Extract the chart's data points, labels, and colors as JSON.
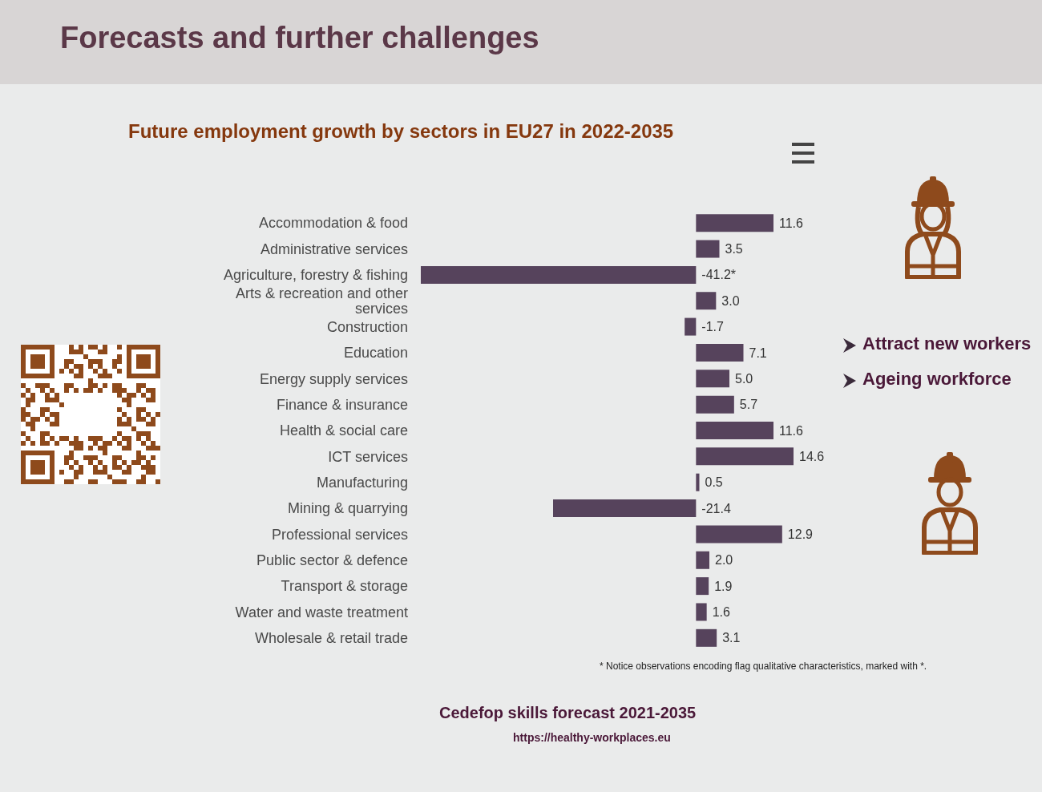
{
  "chart_data": {
    "type": "bar",
    "orientation": "horizontal",
    "title": "Forecasts and further challenges",
    "subtitle": "Future employment growth by sectors in EU27 in 2022-2035",
    "categories": [
      "Accommodation & food",
      "Administrative services",
      "Agriculture, forestry & fishing",
      "Arts & recreation and other services",
      "Construction",
      "Education",
      "Energy supply services",
      "Finance & insurance",
      "Health & social care",
      "ICT services",
      "Manufacturing",
      "Mining & quarrying",
      "Professional services",
      "Public sector & defence",
      "Transport & storage",
      "Water and waste treatment",
      "Wholesale & retail trade"
    ],
    "values": [
      11.6,
      3.5,
      -41.2,
      3.0,
      -1.7,
      7.1,
      5.0,
      5.7,
      11.6,
      14.6,
      0.5,
      -21.4,
      12.9,
      2.0,
      1.9,
      1.6,
      3.1
    ],
    "value_labels": [
      "11.6",
      "3.5",
      "-41.2*",
      "3.0",
      "-1.7",
      "7.1",
      "5.0",
      "5.7",
      "11.6",
      "14.6",
      "0.5",
      "-21.4",
      "12.9",
      "2.0",
      "1.9",
      "1.6",
      "3.1"
    ],
    "color": "#56435c",
    "annotations": [
      "Attract new workers",
      "Ageing workforce",
      "* Notice observations encoding flag qualitative characteristics, marked with *.",
      "Cedefop skills forecast 2021-2035",
      "https://healthy-workplaces.eu"
    ]
  }
}
